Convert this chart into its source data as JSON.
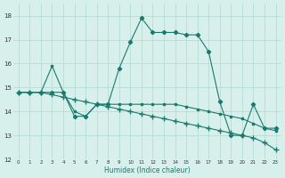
{
  "xlabel": "Humidex (Indice chaleur)",
  "x": [
    0,
    1,
    2,
    3,
    4,
    5,
    6,
    7,
    8,
    9,
    10,
    11,
    12,
    13,
    14,
    15,
    16,
    17,
    18,
    19,
    20,
    21,
    22,
    23
  ],
  "series1": [
    14.8,
    14.8,
    14.8,
    14.8,
    14.8,
    13.8,
    13.8,
    14.3,
    14.3,
    15.8,
    16.9,
    17.9,
    17.3,
    17.3,
    17.3,
    17.2,
    17.2,
    16.5,
    14.4,
    13.0,
    13.0,
    14.3,
    13.3,
    13.3
  ],
  "series2": [
    14.8,
    14.8,
    14.8,
    14.7,
    14.6,
    14.5,
    14.4,
    14.3,
    14.2,
    14.1,
    14.0,
    13.9,
    13.8,
    13.7,
    13.6,
    13.5,
    13.4,
    13.3,
    13.2,
    13.1,
    13.0,
    12.9,
    12.7,
    12.4
  ],
  "series3": [
    14.8,
    14.8,
    14.8,
    15.9,
    14.8,
    14.0,
    13.8,
    14.3,
    14.3,
    14.3,
    14.3,
    14.3,
    14.3,
    14.3,
    14.3,
    14.2,
    14.1,
    14.0,
    13.9,
    13.8,
    13.7,
    13.5,
    13.3,
    13.2
  ],
  "line_color": "#1a7a6e",
  "bg_color": "#d8f0ec",
  "grid_color": "#b0d8d2",
  "ylim": [
    12,
    18.5
  ],
  "yticks": [
    12,
    13,
    14,
    15,
    16,
    17,
    18
  ],
  "xticks": [
    0,
    1,
    2,
    3,
    4,
    5,
    6,
    7,
    8,
    9,
    10,
    11,
    12,
    13,
    14,
    15,
    16,
    17,
    18,
    19,
    20,
    21,
    22,
    23
  ]
}
